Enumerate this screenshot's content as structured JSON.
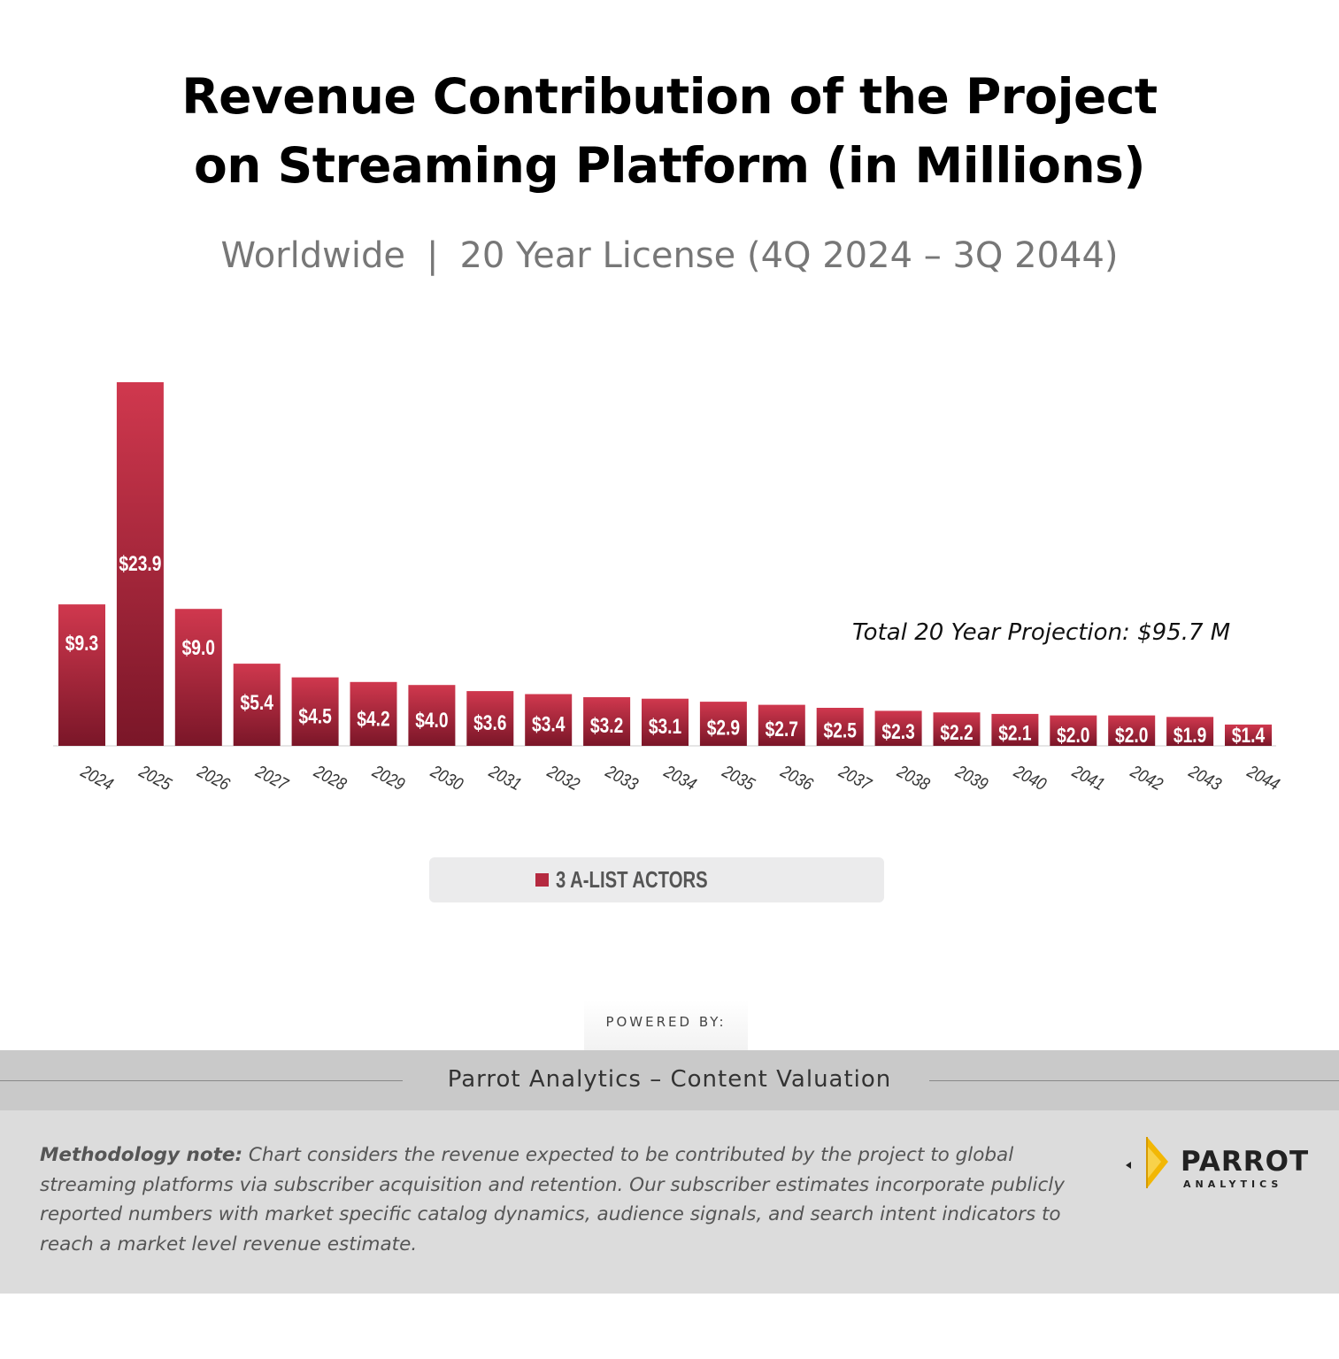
{
  "title": {
    "line1": "Revenue Contribution of the Project",
    "line2": "on Streaming Platform (in Millions)"
  },
  "subtitle": {
    "region": "Worldwide",
    "separator": "|",
    "license": "20 Year License (4Q 2024 – 3Q 2044)"
  },
  "chart_data": {
    "type": "bar",
    "title": "Revenue Contribution of the Project on Streaming Platform (in Millions)",
    "categories": [
      "2024",
      "2025",
      "2026",
      "2027",
      "2028",
      "2029",
      "2030",
      "2031",
      "2032",
      "2033",
      "2034",
      "2035",
      "2036",
      "2037",
      "2038",
      "2039",
      "2040",
      "2041",
      "2042",
      "2043",
      "2044"
    ],
    "series": [
      {
        "name": "3 A-LIST ACTORS",
        "values": [
          9.3,
          23.9,
          9.0,
          5.4,
          4.5,
          4.2,
          4.0,
          3.6,
          3.4,
          3.2,
          3.1,
          2.9,
          2.7,
          2.5,
          2.3,
          2.2,
          2.1,
          2.0,
          2.0,
          1.9,
          1.4
        ],
        "labels": [
          "$9.3",
          "$23.9",
          "$9.0",
          "$5.4",
          "$4.5",
          "$4.2",
          "$4.0",
          "$3.6",
          "$3.4",
          "$3.2",
          "$3.1",
          "$2.9",
          "$2.7",
          "$2.5",
          "$2.3",
          "$2.2",
          "$2.1",
          "$2.0",
          "$2.0",
          "$1.9",
          "$1.4"
        ],
        "color": "#b52a40"
      }
    ],
    "xlabel": "",
    "ylabel": "",
    "ylim": [
      0,
      24
    ],
    "grid": false,
    "legend": "bottom-center",
    "annotation": "Total 20 Year Projection: $95.7 M"
  },
  "legend": {
    "label": "3 A-LIST ACTORS"
  },
  "powered_by": "POWERED BY:",
  "footer": {
    "title": "Parrot Analytics – Content Valuation",
    "method_label": "Methodology note:",
    "method_text": "Chart considers the revenue expected to be contributed by the project to global streaming platforms via subscriber acquisition and retention. Our subscriber estimates incorporate publicly reported numbers with market specific catalog dynamics, audience signals, and search intent indicators to reach a market level revenue estimate.",
    "logo_word": "PARROT",
    "logo_sub": "ANALYTICS"
  },
  "colors": {
    "bar_top": "#d0384e",
    "bar_bottom": "#7a1628",
    "text_dark": "#000000"
  }
}
